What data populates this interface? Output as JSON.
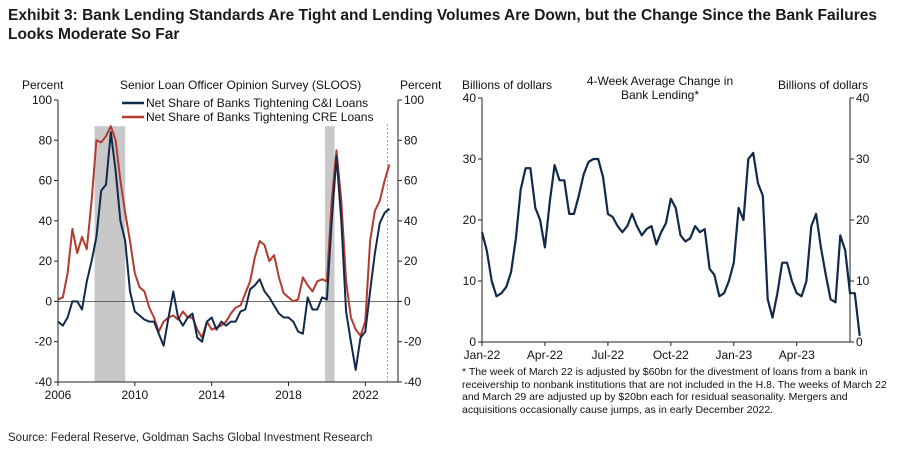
{
  "title": "Exhibit 3: Bank Lending Standards Are Tight and Lending Volumes Are Down, but the Change Since the Bank Failures Looks Moderate So Far",
  "source": "Source: Federal Reserve, Goldman Sachs Global Investment Research",
  "chart_data": [
    {
      "type": "line",
      "title": "Senior Loan Officer Opinion Survey (SLOOS)",
      "ylabel_left": "Percent",
      "ylabel_right": "Percent",
      "ylim": [
        -40,
        100
      ],
      "yticks": [
        -40,
        -20,
        0,
        20,
        40,
        60,
        80,
        100
      ],
      "xlim": [
        2006,
        2023.7
      ],
      "xticks": [
        2006,
        2010,
        2014,
        2018,
        2022
      ],
      "legend_position": "top",
      "shaded_periods": [
        [
          2007.9,
          2009.5
        ],
        [
          2019.9,
          2020.4
        ]
      ],
      "colors": {
        "cni": "#13294b",
        "cre": "#b23a2e",
        "shade": "#c8c8c8"
      },
      "series": [
        {
          "name": "Net Share of Banks Tightening C&I Loans",
          "points": [
            [
              2006.0,
              -10
            ],
            [
              2006.25,
              -12
            ],
            [
              2006.5,
              -8
            ],
            [
              2006.75,
              0
            ],
            [
              2007.0,
              0
            ],
            [
              2007.25,
              -4
            ],
            [
              2007.5,
              10
            ],
            [
              2007.75,
              20
            ],
            [
              2008.0,
              32
            ],
            [
              2008.25,
              55
            ],
            [
              2008.5,
              58
            ],
            [
              2008.75,
              84
            ],
            [
              2009.0,
              65
            ],
            [
              2009.25,
              40
            ],
            [
              2009.5,
              30
            ],
            [
              2009.75,
              5
            ],
            [
              2010.0,
              -5
            ],
            [
              2010.25,
              -7
            ],
            [
              2010.5,
              -9
            ],
            [
              2010.75,
              -10
            ],
            [
              2011.0,
              -10
            ],
            [
              2011.25,
              -16
            ],
            [
              2011.5,
              -22
            ],
            [
              2011.75,
              -8
            ],
            [
              2012.0,
              5
            ],
            [
              2012.25,
              -8
            ],
            [
              2012.5,
              -12
            ],
            [
              2012.75,
              -8
            ],
            [
              2013.0,
              -6
            ],
            [
              2013.25,
              -18
            ],
            [
              2013.5,
              -20
            ],
            [
              2013.75,
              -10
            ],
            [
              2014.0,
              -8
            ],
            [
              2014.25,
              -14
            ],
            [
              2014.5,
              -10
            ],
            [
              2014.75,
              -12
            ],
            [
              2015.0,
              -10
            ],
            [
              2015.25,
              -10
            ],
            [
              2015.5,
              -5
            ],
            [
              2015.75,
              -4
            ],
            [
              2016.0,
              6
            ],
            [
              2016.25,
              8
            ],
            [
              2016.5,
              11
            ],
            [
              2016.75,
              5
            ],
            [
              2017.0,
              2
            ],
            [
              2017.25,
              -2
            ],
            [
              2017.5,
              -6
            ],
            [
              2017.75,
              -8
            ],
            [
              2018.0,
              -8
            ],
            [
              2018.25,
              -10
            ],
            [
              2018.5,
              -15
            ],
            [
              2018.75,
              -16
            ],
            [
              2019.0,
              2
            ],
            [
              2019.25,
              -4
            ],
            [
              2019.5,
              -4
            ],
            [
              2019.75,
              2
            ],
            [
              2020.0,
              1
            ],
            [
              2020.25,
              40
            ],
            [
              2020.5,
              72
            ],
            [
              2020.75,
              40
            ],
            [
              2021.0,
              -5
            ],
            [
              2021.25,
              -20
            ],
            [
              2021.5,
              -34
            ],
            [
              2021.75,
              -18
            ],
            [
              2022.0,
              -15
            ],
            [
              2022.25,
              5
            ],
            [
              2022.5,
              24
            ],
            [
              2022.75,
              39
            ],
            [
              2023.0,
              44
            ],
            [
              2023.25,
              46
            ]
          ]
        },
        {
          "name": "Net Share of Banks Tightening CRE Loans",
          "points": [
            [
              2006.0,
              1
            ],
            [
              2006.25,
              2
            ],
            [
              2006.5,
              14
            ],
            [
              2006.75,
              36
            ],
            [
              2007.0,
              24
            ],
            [
              2007.25,
              32
            ],
            [
              2007.5,
              26
            ],
            [
              2007.75,
              50
            ],
            [
              2008.0,
              80
            ],
            [
              2008.25,
              79
            ],
            [
              2008.5,
              82
            ],
            [
              2008.75,
              87
            ],
            [
              2009.0,
              80
            ],
            [
              2009.25,
              60
            ],
            [
              2009.5,
              44
            ],
            [
              2009.75,
              30
            ],
            [
              2010.0,
              14
            ],
            [
              2010.25,
              7
            ],
            [
              2010.5,
              5
            ],
            [
              2010.75,
              -3
            ],
            [
              2011.0,
              -8
            ],
            [
              2011.25,
              -15
            ],
            [
              2011.5,
              -10
            ],
            [
              2011.75,
              -8
            ],
            [
              2012.0,
              -7
            ],
            [
              2012.25,
              -9
            ],
            [
              2012.5,
              -5
            ],
            [
              2012.75,
              -8
            ],
            [
              2013.0,
              -8
            ],
            [
              2013.25,
              -14
            ],
            [
              2013.5,
              -18
            ],
            [
              2013.75,
              -10
            ],
            [
              2014.0,
              -14
            ],
            [
              2014.25,
              -13
            ],
            [
              2014.5,
              -12
            ],
            [
              2014.75,
              -10
            ],
            [
              2015.0,
              -6
            ],
            [
              2015.25,
              -3
            ],
            [
              2015.5,
              -2
            ],
            [
              2015.75,
              4
            ],
            [
              2016.0,
              10
            ],
            [
              2016.25,
              22
            ],
            [
              2016.5,
              30
            ],
            [
              2016.75,
              28
            ],
            [
              2017.0,
              20
            ],
            [
              2017.25,
              23
            ],
            [
              2017.5,
              12
            ],
            [
              2017.75,
              4
            ],
            [
              2018.0,
              2
            ],
            [
              2018.25,
              0
            ],
            [
              2018.5,
              1
            ],
            [
              2018.75,
              12
            ],
            [
              2019.0,
              8
            ],
            [
              2019.25,
              5
            ],
            [
              2019.5,
              10
            ],
            [
              2019.75,
              11
            ],
            [
              2020.0,
              10
            ],
            [
              2020.25,
              50
            ],
            [
              2020.5,
              75
            ],
            [
              2020.75,
              50
            ],
            [
              2021.0,
              10
            ],
            [
              2021.25,
              -8
            ],
            [
              2021.5,
              -14
            ],
            [
              2021.75,
              -17
            ],
            [
              2022.0,
              -10
            ],
            [
              2022.25,
              30
            ],
            [
              2022.5,
              45
            ],
            [
              2022.75,
              50
            ],
            [
              2023.0,
              60
            ],
            [
              2023.25,
              68
            ]
          ]
        }
      ]
    },
    {
      "type": "line",
      "title": "4-Week Average Change in Bank Lending*",
      "ylabel_left": "Billions of dollars",
      "ylabel_right": "Billions of dollars",
      "ylim": [
        0,
        40
      ],
      "yticks": [
        0,
        10,
        20,
        30,
        40
      ],
      "xlim": [
        0,
        76
      ],
      "xtick_positions": [
        0,
        13,
        26,
        39,
        52,
        65
      ],
      "xtick_labels": [
        "Jan-22",
        "Apr-22",
        "Jul-22",
        "Oct-22",
        "Jan-23",
        "Apr-23"
      ],
      "color": "#13294b",
      "values": [
        18,
        15,
        10,
        7.5,
        8,
        9,
        11.5,
        17,
        25,
        28.5,
        28.5,
        22,
        20,
        15.5,
        23,
        29,
        26.5,
        26.5,
        21,
        21,
        24,
        27.5,
        29.5,
        30,
        30,
        27,
        21,
        20.5,
        19,
        18,
        19,
        21,
        19,
        17.5,
        18.5,
        19,
        16,
        18,
        19.5,
        23.5,
        22,
        17.5,
        16.5,
        17,
        19,
        18,
        18.5,
        12,
        11,
        7.5,
        8,
        10,
        13,
        22,
        20,
        30,
        31,
        26,
        24,
        7,
        4,
        8,
        13,
        13,
        10,
        8,
        7.5,
        10,
        19,
        21,
        15.5,
        11,
        7,
        6.5,
        17.5,
        15,
        8,
        8,
        1
      ],
      "footnote": "* The week of March 22 is adjusted by $60bn for the divestment of loans from a bank in receivership to nonbank institutions that are not included in the H.8. The weeks of March 22 and March 29 are adjusted up by $20bn each for residual seasonality. Mergers and acquisitions occasionally cause jumps, as in early December 2022."
    }
  ]
}
